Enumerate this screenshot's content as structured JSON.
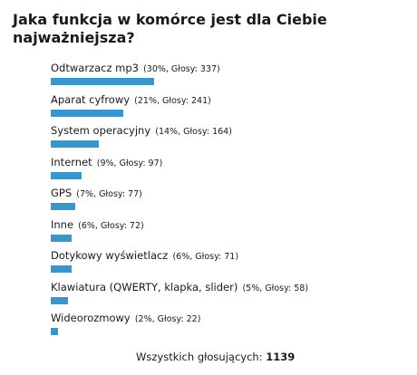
{
  "poll": {
    "question": "Jaka funkcja w komórce jest dla Ciebie najważniejsza?",
    "total_label": "Wszystkich głosujących:",
    "total_votes": "1139",
    "bar_color": "#3a95c9"
  },
  "chart_data": {
    "type": "bar",
    "orientation": "horizontal",
    "title": "Jaka funkcja w komórce jest dla Ciebie najważniejsza?",
    "categories": [
      "Odtwarzacz mp3",
      "Aparat cyfrowy",
      "System operacyjny",
      "Internet",
      "GPS",
      "Inne",
      "Dotykowy wyświetlacz",
      "Klawiatura (QWERTY, klapka, slider)",
      "Wideorozmowy"
    ],
    "stats": [
      "(30%, Głosy: 337)",
      "(21%, Głosy: 241)",
      "(14%, Głosy: 164)",
      "(9%, Głosy: 97)",
      "(7%, Głosy: 77)",
      "(6%, Głosy: 72)",
      "(6%, Głosy: 71)",
      "(5%, Głosy: 58)",
      "(2%, Głosy: 22)"
    ],
    "percentages": [
      30,
      21,
      14,
      9,
      7,
      6,
      6,
      5,
      2
    ],
    "values": [
      337,
      241,
      164,
      97,
      77,
      72,
      71,
      58,
      22
    ],
    "total": 1139
  }
}
